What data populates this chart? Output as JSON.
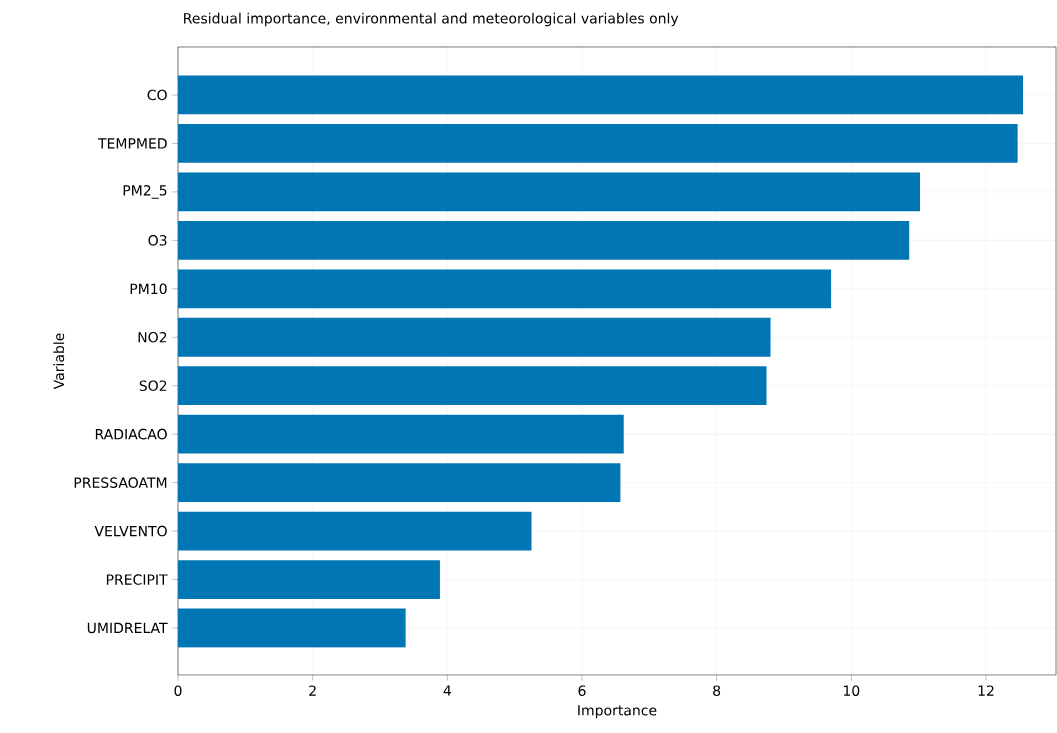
{
  "chart_data": {
    "type": "bar",
    "orientation": "horizontal",
    "title": "Residual importance, environmental and meteorological variables only",
    "xlabel": "Importance",
    "ylabel": "Variable",
    "categories": [
      "CO",
      "TEMPMED",
      "PM2_5",
      "O3",
      "PM10",
      "NO2",
      "SO2",
      "RADIACAO",
      "PRESSAOATM",
      "VELVENTO",
      "PRECIPIT",
      "UMIDRELAT"
    ],
    "values": [
      12.55,
      12.47,
      11.02,
      10.86,
      9.7,
      8.8,
      8.74,
      6.62,
      6.57,
      5.25,
      3.89,
      3.38
    ],
    "color": "#0077b4",
    "xlim": [
      0,
      13.04
    ],
    "xticks": [
      0,
      2,
      4,
      6,
      8,
      10,
      12
    ],
    "grid": true
  }
}
